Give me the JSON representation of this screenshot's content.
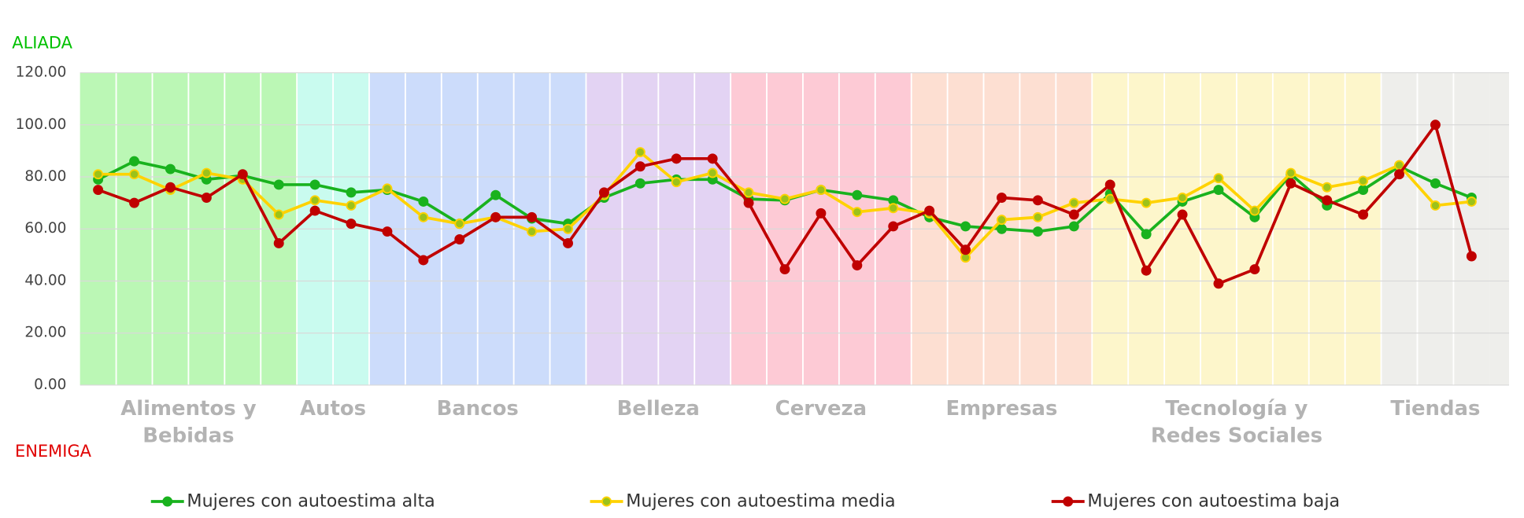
{
  "chart_data": {
    "type": "line",
    "top_annotation": "ALIADA",
    "top_annotation_color": "#00c000",
    "bottom_annotation": "ENEMIGA",
    "bottom_annotation_color": "#e00000",
    "categories": [
      null,
      null,
      null,
      null,
      null,
      null,
      null,
      null,
      null,
      null,
      null,
      null,
      null,
      null,
      null,
      null,
      null,
      null,
      null,
      null,
      null,
      null,
      null,
      null,
      null,
      null,
      null,
      null,
      null,
      null,
      null,
      null,
      null,
      null,
      null,
      null,
      null,
      null,
      null
    ],
    "groups": [
      {
        "label": "Alimentos y Bebidas",
        "span": 6,
        "color": "#bbf7b5"
      },
      {
        "label": "Autos",
        "span": 2,
        "color": "#c9fbef"
      },
      {
        "label": "Bancos",
        "span": 6,
        "color": "#ccdcfb"
      },
      {
        "label": "Belleza",
        "span": 4,
        "color": "#e3d3f3"
      },
      {
        "label": "Cerveza",
        "span": 5,
        "color": "#fdcad5"
      },
      {
        "label": "Empresas",
        "span": 5,
        "color": "#fddfd2"
      },
      {
        "label": "Tecnología y Redes Sociales",
        "span": 8,
        "color": "#fdf6cb"
      },
      {
        "label": "Tiendas",
        "span": 3,
        "color": "#eeeeeb"
      }
    ],
    "series": [
      {
        "name": "Mujeres con autoestima alta",
        "color": "#19b21e",
        "marker_color": "#19b21e",
        "values": [
          79,
          86,
          83,
          79,
          80.5,
          77,
          77,
          74,
          75,
          70.5,
          62,
          73,
          64,
          62,
          72,
          77.5,
          79,
          79,
          71.5,
          71,
          75,
          73,
          71,
          64.5,
          61,
          60,
          59,
          61,
          73.5,
          58,
          70.5,
          75,
          64.5,
          81,
          69,
          75,
          84,
          77.5,
          72
        ]
      },
      {
        "name": "Mujeres con autoestima media",
        "color": "#ffd200",
        "marker_color": "#9cc21a",
        "values": [
          81,
          81,
          75,
          81.5,
          79,
          65.5,
          71,
          69,
          75.5,
          64.5,
          62,
          64.5,
          59,
          60,
          73,
          89.5,
          78,
          81.5,
          74,
          71.5,
          75,
          66.5,
          68,
          66,
          49,
          63.5,
          64.5,
          70,
          71.5,
          70,
          72,
          79.5,
          67,
          81.5,
          76,
          78.5,
          84.5,
          69,
          70.5
        ]
      },
      {
        "name": "Mujeres con autoestima baja",
        "color": "#c00000",
        "marker_color": "#c00000",
        "values": [
          75,
          70,
          76,
          72,
          81,
          54.5,
          67,
          62,
          59,
          48,
          56,
          64.5,
          64.5,
          54.5,
          74,
          84,
          87,
          87,
          70,
          44.5,
          66,
          46,
          61,
          67,
          52,
          72,
          71,
          65.5,
          77,
          44,
          65.5,
          39,
          44.5,
          77.5,
          71,
          65.5,
          81,
          100,
          49.5
        ]
      }
    ],
    "ylim": [
      0,
      120
    ],
    "yticks": [
      {
        "value": 0,
        "label": "0.00"
      },
      {
        "value": 20,
        "label": "20.00"
      },
      {
        "value": 40,
        "label": "40.00"
      },
      {
        "value": 60,
        "label": "60.00"
      },
      {
        "value": 80,
        "label": "80.00"
      },
      {
        "value": 100,
        "label": "100.00"
      },
      {
        "value": 120,
        "label": "120.00"
      }
    ],
    "grid": true,
    "legend": "bottom"
  }
}
